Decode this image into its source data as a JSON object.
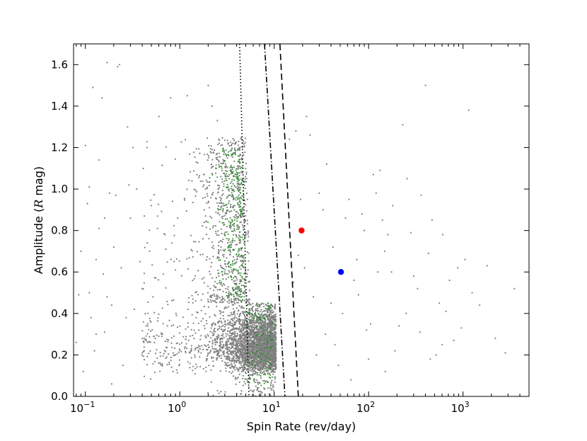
{
  "chart_data": {
    "type": "scatter",
    "xlabel": "Spin Rate (rev/day)",
    "ylabel_prefix": "Amplitude (",
    "ylabel_var": "R",
    "ylabel_suffix": " mag)",
    "x_scale": "log",
    "xlim": [
      0.075,
      5000
    ],
    "ylim": [
      0.0,
      1.7
    ],
    "grid": false,
    "x_ticks": [
      {
        "value": 0.1,
        "base": "10",
        "exp": "−1"
      },
      {
        "value": 1,
        "base": "10",
        "exp": "0"
      },
      {
        "value": 10,
        "base": "10",
        "exp": "1"
      },
      {
        "value": 100,
        "base": "10",
        "exp": "2"
      },
      {
        "value": 1000,
        "base": "10",
        "exp": "3"
      }
    ],
    "y_ticks": [
      "0.0",
      "0.2",
      "0.4",
      "0.6",
      "0.8",
      "1.0",
      "1.2",
      "1.4",
      "1.6"
    ],
    "y_tick_values": [
      0.0,
      0.2,
      0.4,
      0.6,
      0.8,
      1.0,
      1.2,
      1.4,
      1.6
    ],
    "colors": {
      "background_points": "#808080",
      "green_points": "#228b22",
      "highlight_red": "#ff0000",
      "highlight_blue": "#0000ff",
      "lines": "#000000"
    },
    "highlighted_points": [
      {
        "x": 19.5,
        "y": 0.8,
        "color": "#ff0000"
      },
      {
        "x": 51,
        "y": 0.6,
        "color": "#0000ff"
      }
    ],
    "boundary_lines": [
      {
        "style": "dotted",
        "points": [
          [
            4.3,
            1.7
          ],
          [
            5.4,
            0.0
          ]
        ]
      },
      {
        "style": "dashdot",
        "points": [
          [
            7.9,
            1.7
          ],
          [
            13.0,
            0.0
          ]
        ]
      },
      {
        "style": "dashed",
        "points": [
          [
            11.5,
            1.7
          ],
          [
            18.0,
            0.0
          ]
        ]
      }
    ],
    "sparse_points": [
      [
        0.08,
        0.26
      ],
      [
        0.085,
        0.49
      ],
      [
        0.09,
        0.7
      ],
      [
        0.095,
        0.12
      ],
      [
        0.1,
        1.21
      ],
      [
        0.105,
        0.93
      ],
      [
        0.11,
        0.5
      ],
      [
        0.115,
        0.38
      ],
      [
        0.12,
        1.49
      ],
      [
        0.125,
        0.22
      ],
      [
        0.13,
        0.66
      ],
      [
        0.14,
        0.81
      ],
      [
        0.15,
        1.44
      ],
      [
        0.155,
        0.59
      ],
      [
        0.16,
        0.31
      ],
      [
        0.17,
        1.61
      ],
      [
        0.18,
        0.98
      ],
      [
        0.19,
        0.44
      ],
      [
        0.2,
        0.72
      ],
      [
        0.22,
        1.59
      ],
      [
        0.23,
        1.6
      ],
      [
        0.25,
        0.15
      ],
      [
        0.28,
        1.3
      ],
      [
        0.3,
        0.86
      ],
      [
        0.32,
        1.2
      ],
      [
        0.35,
        1.0
      ],
      [
        0.4,
        0.52
      ],
      [
        0.45,
        1.2
      ],
      [
        0.5,
        0.92
      ],
      [
        0.55,
        0.28
      ],
      [
        0.6,
        1.35
      ],
      [
        0.7,
        0.78
      ],
      [
        0.8,
        1.44
      ],
      [
        0.9,
        0.61
      ],
      [
        0.11,
        1.01
      ],
      [
        0.13,
        0.3
      ],
      [
        0.14,
        1.14
      ],
      [
        0.16,
        0.86
      ],
      [
        0.17,
        0.48
      ],
      [
        0.19,
        0.06
      ],
      [
        0.21,
        0.97
      ],
      [
        0.24,
        0.62
      ],
      [
        0.27,
        0.38
      ],
      [
        0.29,
        1.02
      ],
      [
        0.33,
        0.42
      ],
      [
        0.38,
        0.65
      ],
      [
        0.42,
        0.22
      ],
      [
        0.48,
        0.7
      ],
      [
        0.52,
        0.48
      ],
      [
        0.58,
        0.81
      ],
      [
        0.62,
        0.16
      ],
      [
        0.67,
        0.59
      ],
      [
        0.74,
        0.34
      ],
      [
        0.85,
        0.12
      ],
      [
        0.95,
        0.86
      ],
      [
        1.2,
        1.45
      ],
      [
        1.5,
        1.13
      ],
      [
        2.0,
        1.5
      ],
      [
        2.5,
        1.33
      ],
      [
        1.8,
        1.02
      ],
      [
        2.2,
        1.4
      ],
      [
        14.5,
        1.24
      ],
      [
        17,
        1.28
      ],
      [
        19,
        0.95
      ],
      [
        22,
        1.35
      ],
      [
        24,
        1.26
      ],
      [
        28,
        0.2
      ],
      [
        30,
        0.98
      ],
      [
        33,
        0.9
      ],
      [
        36,
        1.12
      ],
      [
        40,
        0.45
      ],
      [
        44,
        0.25
      ],
      [
        48,
        0.15
      ],
      [
        53,
        0.4
      ],
      [
        57,
        0.86
      ],
      [
        62,
        0.95
      ],
      [
        70,
        0.56
      ],
      [
        78,
        0.49
      ],
      [
        85,
        0.88
      ],
      [
        90,
        0.8
      ],
      [
        95,
        0.32
      ],
      [
        105,
        0.35
      ],
      [
        112,
        1.07
      ],
      [
        120,
        0.98
      ],
      [
        132,
        1.09
      ],
      [
        140,
        0.85
      ],
      [
        148,
        0.7
      ],
      [
        160,
        0.78
      ],
      [
        175,
        0.6
      ],
      [
        190,
        0.22
      ],
      [
        210,
        0.34
      ],
      [
        230,
        1.31
      ],
      [
        255,
        1.05
      ],
      [
        280,
        0.79
      ],
      [
        300,
        0.58
      ],
      [
        330,
        0.52
      ],
      [
        360,
        0.97
      ],
      [
        400,
        1.5
      ],
      [
        430,
        0.69
      ],
      [
        470,
        0.85
      ],
      [
        520,
        0.2
      ],
      [
        560,
        0.45
      ],
      [
        610,
        0.78
      ],
      [
        660,
        0.41
      ],
      [
        720,
        0.56
      ],
      [
        800,
        0.27
      ],
      [
        880,
        0.62
      ],
      [
        960,
        0.33
      ],
      [
        1050,
        0.66
      ],
      [
        1150,
        1.38
      ],
      [
        1250,
        0.5
      ],
      [
        1500,
        0.44
      ],
      [
        1800,
        0.63
      ],
      [
        2200,
        0.28
      ],
      [
        2800,
        0.21
      ],
      [
        3500,
        0.52
      ],
      [
        16,
        0.55
      ],
      [
        18,
        0.68
      ],
      [
        21,
        0.62
      ],
      [
        26,
        0.48
      ],
      [
        35,
        0.3
      ],
      [
        42,
        0.72
      ],
      [
        65,
        0.08
      ],
      [
        75,
        0.66
      ],
      [
        100,
        0.18
      ],
      [
        125,
        0.6
      ],
      [
        150,
        0.12
      ],
      [
        180,
        0.92
      ],
      [
        250,
        0.4
      ],
      [
        350,
        0.31
      ],
      [
        450,
        0.18
      ],
      [
        600,
        0.25
      ]
    ],
    "cluster": {
      "description_count": 4200,
      "green_count": 420,
      "seed": 7,
      "core_log10_range": [
        -0.4,
        1.08
      ],
      "amp_range": [
        0.0,
        1.3
      ]
    }
  }
}
